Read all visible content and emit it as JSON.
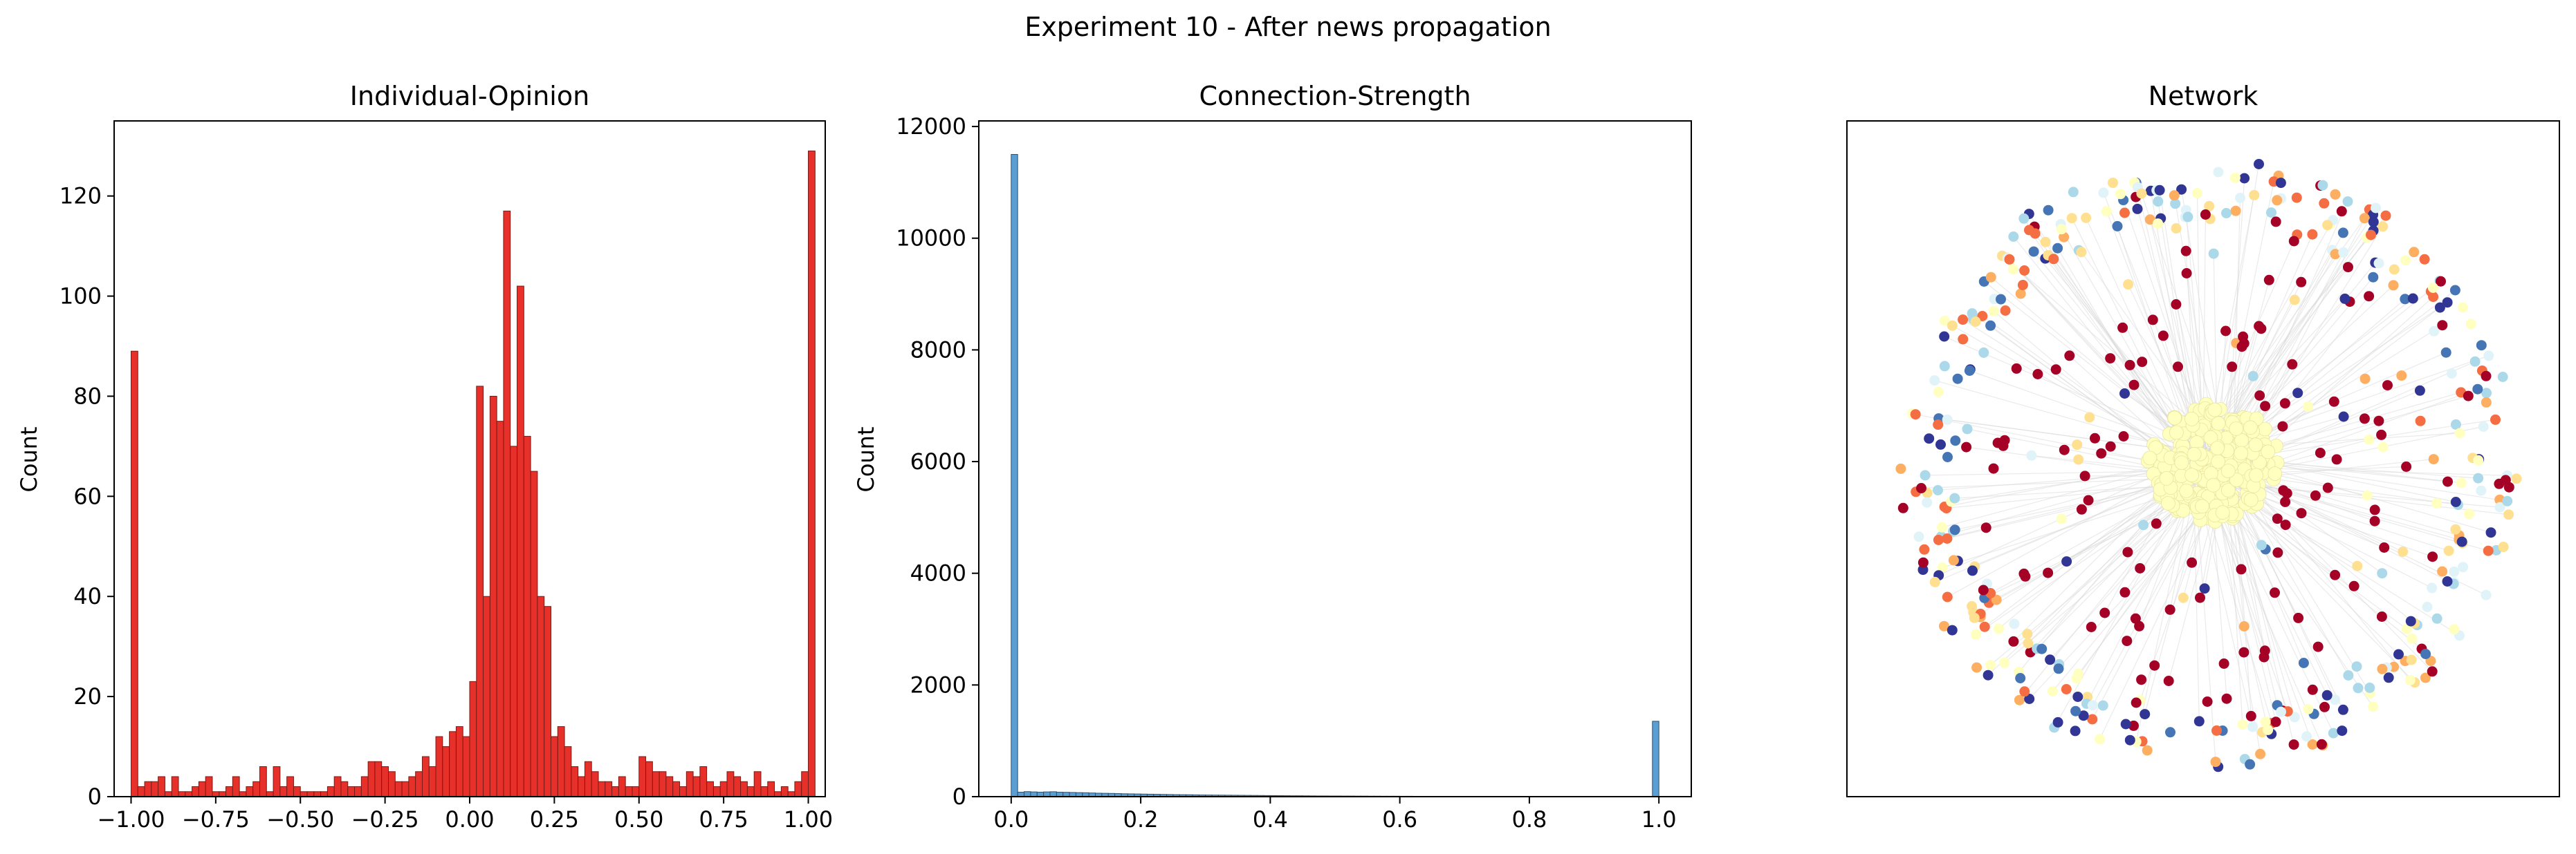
{
  "figure": {
    "title": "Experiment 10 - After news propagation"
  },
  "chart_data": [
    {
      "type": "bar",
      "title": "Individual-Opinion",
      "xlabel": "",
      "ylabel": "Count",
      "xlim": [
        -1.05,
        1.05
      ],
      "ylim": [
        0,
        135
      ],
      "xticks": [
        -1.0,
        -0.75,
        -0.5,
        -0.25,
        0.0,
        0.25,
        0.5,
        0.75,
        1.0
      ],
      "xtick_labels": [
        "−1.00",
        "−0.75",
        "−0.50",
        "−0.25",
        "0.00",
        "0.25",
        "0.50",
        "0.75",
        "1.00"
      ],
      "yticks": [
        0,
        20,
        40,
        60,
        80,
        100,
        120
      ],
      "ytick_labels": [
        "0",
        "20",
        "40",
        "60",
        "80",
        "100",
        "120"
      ],
      "bin_start": -1.0,
      "bin_width": 0.02,
      "color": "#e8302a",
      "edge_color": "#7a1a14",
      "values": [
        89,
        2,
        3,
        3,
        4,
        1,
        4,
        1,
        1,
        2,
        3,
        4,
        1,
        1,
        2,
        4,
        1,
        2,
        3,
        6,
        1,
        6,
        2,
        4,
        2,
        1,
        1,
        1,
        1,
        2,
        4,
        3,
        2,
        2,
        4,
        7,
        7,
        6,
        5,
        3,
        3,
        4,
        5,
        8,
        6,
        12,
        10,
        13,
        14,
        12,
        23,
        82,
        40,
        80,
        75,
        117,
        70,
        102,
        72,
        65,
        40,
        38,
        12,
        14,
        10,
        6,
        4,
        7,
        5,
        3,
        3,
        2,
        4,
        2,
        2,
        8,
        7,
        5,
        5,
        4,
        3,
        2,
        5,
        4,
        6,
        3,
        2,
        3,
        5,
        4,
        3,
        2,
        5,
        2,
        3,
        1,
        2,
        1,
        3,
        5,
        129
      ]
    },
    {
      "type": "bar",
      "title": "Connection-Strength",
      "xlabel": "",
      "ylabel": "Count",
      "xlim": [
        -0.05,
        1.05
      ],
      "ylim": [
        0,
        12100
      ],
      "xticks": [
        0.0,
        0.2,
        0.4,
        0.6,
        0.8,
        1.0
      ],
      "xtick_labels": [
        "0.0",
        "0.2",
        "0.4",
        "0.6",
        "0.8",
        "1.0"
      ],
      "yticks": [
        0,
        2000,
        4000,
        6000,
        8000,
        10000,
        12000
      ],
      "ytick_labels": [
        "0",
        "2000",
        "4000",
        "6000",
        "8000",
        "10000",
        "12000"
      ],
      "bin_start": 0.0,
      "bin_width": 0.01,
      "color": "#5a9fd4",
      "edge_color": "#2e4f6e",
      "values": [
        11500,
        80,
        90,
        85,
        80,
        85,
        88,
        80,
        78,
        75,
        72,
        70,
        66,
        62,
        60,
        58,
        55,
        52,
        50,
        48,
        46,
        44,
        42,
        40,
        38,
        36,
        35,
        34,
        32,
        30,
        29,
        28,
        27,
        26,
        25,
        24,
        23,
        22,
        21,
        20,
        19,
        18,
        17,
        16,
        16,
        15,
        14,
        13,
        13,
        12,
        12,
        11,
        11,
        10,
        10,
        9,
        9,
        8,
        8,
        8,
        7,
        7,
        6,
        6,
        6,
        5,
        5,
        5,
        4,
        4,
        4,
        4,
        3,
        3,
        3,
        3,
        3,
        2,
        2,
        2,
        2,
        2,
        2,
        2,
        2,
        1,
        1,
        1,
        1,
        1,
        1,
        1,
        1,
        1,
        1,
        1,
        1,
        1,
        1,
        1350
      ]
    },
    {
      "type": "scatter",
      "title": "Network",
      "xlabel": "",
      "ylabel": "",
      "node_colors": [
        "#a50026",
        "#313695",
        "#4575b4",
        "#abd9e9",
        "#fee090",
        "#fdae61",
        "#f46d43",
        "#ffffbf",
        "#e0f3f8"
      ],
      "edge_color": "#d9d9d9"
    }
  ]
}
